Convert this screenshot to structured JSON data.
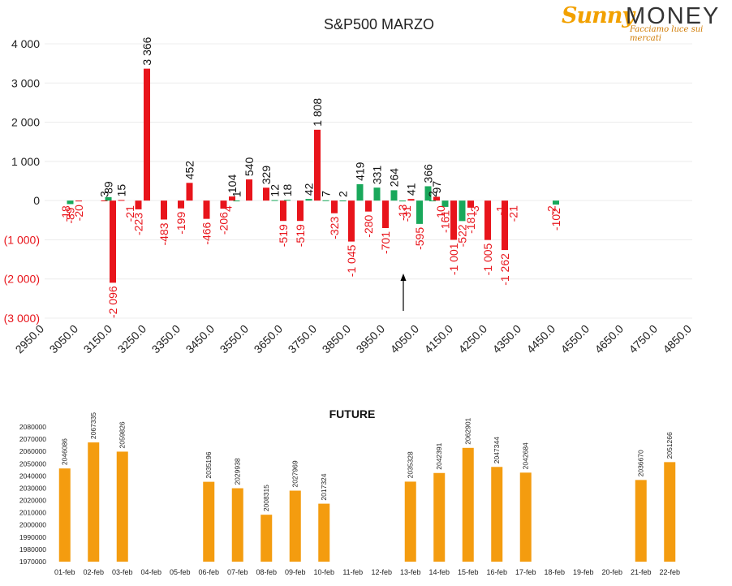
{
  "logo": {
    "part1": "Sunny",
    "part2": "MONEY",
    "tagline": "Facciamo luce sui mercati"
  },
  "colors": {
    "negative": "#e8141b",
    "positive": "#19a85b",
    "future": "#f49c0f",
    "axis_neg": "#e8141b",
    "text": "#222222"
  },
  "chart_data": [
    {
      "type": "bar",
      "title": "S&P500 MARZO",
      "ylim": [
        -3000,
        4000
      ],
      "yticks": [
        {
          "v": 4000,
          "label": "4 000"
        },
        {
          "v": 3000,
          "label": "3 000"
        },
        {
          "v": 2000,
          "label": "2 000"
        },
        {
          "v": 1000,
          "label": "1 000"
        },
        {
          "v": 0,
          "label": "0"
        },
        {
          "v": -1000,
          "label": "(1 000)"
        },
        {
          "v": -2000,
          "label": "(2 000)"
        },
        {
          "v": -3000,
          "label": "(3 000)"
        }
      ],
      "xlim": [
        2950,
        4850
      ],
      "xticks": [
        "2950.0",
        "3050.0",
        "3150.0",
        "3250.0",
        "3350.0",
        "3450.0",
        "3550.0",
        "3650.0",
        "3750.0",
        "3850.0",
        "3950.0",
        "4050.0",
        "4150.0",
        "4250.0",
        "4350.0",
        "4450.0",
        "4550.0",
        "4650.0",
        "4750.0",
        "4850.0"
      ],
      "grid": true,
      "annotation": "arrow at 4000",
      "series": [
        {
          "color": "red",
          "points": [
            {
              "x": 3050,
              "v": -20,
              "label": "-20"
            },
            {
              "x": 3125,
              "v": 3,
              "label": "3"
            },
            {
              "x": 3150,
              "v": -2096,
              "label": "-2 096"
            },
            {
              "x": 3175,
              "v": 15,
              "label": "15"
            },
            {
              "x": 3225,
              "v": -223,
              "label": "-223"
            },
            {
              "x": 3250,
              "v": 3366,
              "label": "3 366"
            },
            {
              "x": 3300,
              "v": -483,
              "label": "-483"
            },
            {
              "x": 3350,
              "v": -199,
              "label": "-199"
            },
            {
              "x": 3375,
              "v": 452,
              "label": "452"
            },
            {
              "x": 3425,
              "v": -466,
              "label": "-466"
            },
            {
              "x": 3475,
              "v": -206,
              "label": "-206"
            },
            {
              "x": 3500,
              "v": 104,
              "label": "104"
            },
            {
              "x": 3550,
              "v": 540,
              "label": "540"
            },
            {
              "x": 3600,
              "v": 329,
              "label": "329"
            },
            {
              "x": 3650,
              "v": -519,
              "label": "-519"
            },
            {
              "x": 3700,
              "v": -519,
              "label": "-519"
            },
            {
              "x": 3750,
              "v": 1808,
              "label": "1 808"
            },
            {
              "x": 3800,
              "v": -323,
              "label": "-323"
            },
            {
              "x": 3850,
              "v": -1045,
              "label": "-1 045"
            },
            {
              "x": 3900,
              "v": -280,
              "label": "-280"
            },
            {
              "x": 3950,
              "v": -701,
              "label": "-701"
            },
            {
              "x": 4025,
              "v": 41,
              "label": "41"
            },
            {
              "x": 4100,
              "v": 97,
              "label": "97"
            },
            {
              "x": 4150,
              "v": -1001,
              "label": "-1 001"
            },
            {
              "x": 4200,
              "v": -181,
              "label": "-181"
            },
            {
              "x": 4250,
              "v": -1005,
              "label": "-1 005"
            },
            {
              "x": 4300,
              "v": -1262,
              "label": "-1 262"
            }
          ]
        },
        {
          "color": "green",
          "points": [
            {
              "x": 3025,
              "v": -89,
              "label": "-89"
            },
            {
              "x": 3137,
              "v": 89,
              "label": "89"
            },
            {
              "x": 3513,
              "v": 1,
              "label": "1"
            },
            {
              "x": 3625,
              "v": 12,
              "label": "12"
            },
            {
              "x": 3662,
              "v": 18,
              "label": "18"
            },
            {
              "x": 3725,
              "v": 42,
              "label": "42"
            },
            {
              "x": 3775,
              "v": 7,
              "label": "7"
            },
            {
              "x": 3825,
              "v": 2,
              "label": "2"
            },
            {
              "x": 3875,
              "v": 419,
              "label": "419"
            },
            {
              "x": 3925,
              "v": 331,
              "label": "331"
            },
            {
              "x": 3975,
              "v": 264,
              "label": "264"
            },
            {
              "x": 4000,
              "v": -13,
              "label": "-13"
            },
            {
              "x": 4050,
              "v": -595,
              "label": "-595"
            },
            {
              "x": 4075,
              "v": 366,
              "label": "366"
            },
            {
              "x": 4088,
              "v": 2,
              "label": "2"
            },
            {
              "x": 4125,
              "v": -161,
              "label": "-161"
            },
            {
              "x": 4175,
              "v": -522,
              "label": "-522"
            },
            {
              "x": 4450,
              "v": -102,
              "label": "-102"
            }
          ]
        }
      ],
      "small_labels": [
        {
          "x": 3012,
          "label": "-18"
        },
        {
          "x": 3200,
          "label": "-21"
        },
        {
          "x": 3487,
          "label": "4"
        },
        {
          "x": 4012,
          "label": "-31"
        },
        {
          "x": 4112,
          "label": "-10"
        },
        {
          "x": 4212,
          "label": "-3"
        },
        {
          "x": 4287,
          "label": "-1"
        },
        {
          "x": 4325,
          "label": "-21"
        },
        {
          "x": 4437,
          "label": "-2"
        }
      ]
    },
    {
      "type": "bar",
      "title": "FUTURE",
      "ylim": [
        1970000,
        2080000
      ],
      "yticks": [
        1970000,
        1980000,
        1990000,
        2000000,
        2010000,
        2020000,
        2030000,
        2040000,
        2050000,
        2060000,
        2070000,
        2080000
      ],
      "categories": [
        "01-feb",
        "02-feb",
        "03-feb",
        "04-feb",
        "05-feb",
        "06-feb",
        "07-feb",
        "08-feb",
        "09-feb",
        "10-feb",
        "11-feb",
        "12-feb",
        "13-feb",
        "14-feb",
        "15-feb",
        "16-feb",
        "17-feb",
        "18-feb",
        "19-feb",
        "20-feb",
        "21-feb",
        "22-feb"
      ],
      "values": [
        2046086,
        2067335,
        2059826,
        null,
        null,
        2035196,
        2029938,
        2008315,
        2027969,
        2017324,
        null,
        null,
        2035328,
        2042391,
        2062901,
        2047344,
        2042684,
        null,
        null,
        null,
        2036670,
        2051266
      ]
    }
  ]
}
